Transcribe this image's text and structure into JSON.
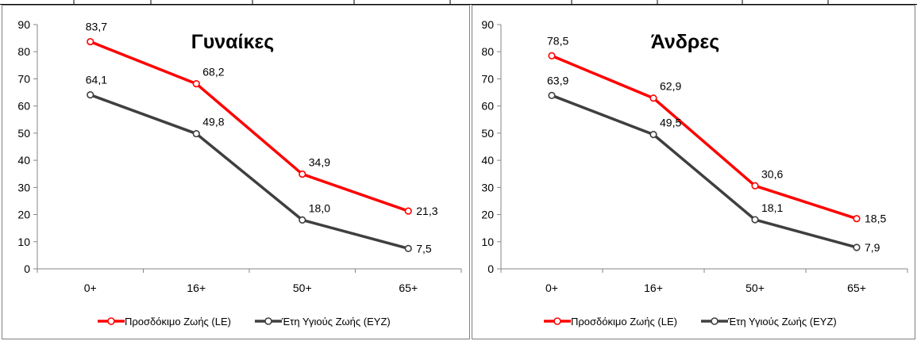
{
  "chart_data": [
    {
      "type": "line",
      "title": "Γυναίκες",
      "categories": [
        "0+",
        "16+",
        "50+",
        "65+"
      ],
      "ylim": [
        0,
        90
      ],
      "yticks": [
        "0",
        "10",
        "20",
        "30",
        "40",
        "50",
        "60",
        "70",
        "80",
        "90"
      ],
      "grid": false,
      "legend": "bottom",
      "series": [
        {
          "name": "Προσδόκιμο Ζωής  (LE)",
          "color": "#ff0000",
          "values": [
            83.7,
            68.2,
            34.9,
            21.3
          ],
          "labels": [
            "83,7",
            "68,2",
            "34,9",
            "21,3"
          ]
        },
        {
          "name": "Έτη Υγιούς Ζωής (ΕΥΖ)",
          "color": "#3f3f3f",
          "values": [
            64.1,
            49.8,
            18.0,
            7.5
          ],
          "labels": [
            "64,1",
            "49,8",
            "18,0",
            "7,5"
          ]
        }
      ]
    },
    {
      "type": "line",
      "title": "Άνδρες",
      "categories": [
        "0+",
        "16+",
        "50+",
        "65+"
      ],
      "ylim": [
        0,
        90
      ],
      "yticks": [
        "0",
        "10",
        "20",
        "30",
        "40",
        "50",
        "60",
        "70",
        "80",
        "90"
      ],
      "grid": false,
      "legend": "bottom",
      "series": [
        {
          "name": "Προσδόκιμο Ζωής  (LE)",
          "color": "#ff0000",
          "values": [
            78.5,
            62.9,
            30.6,
            18.5
          ],
          "labels": [
            "78,5",
            "62,9",
            "30,6",
            "18,5"
          ]
        },
        {
          "name": "Έτη Υγιούς Ζωής (ΕΥΖ)",
          "color": "#3f3f3f",
          "values": [
            63.9,
            49.5,
            18.1,
            7.9
          ],
          "labels": [
            "63,9",
            "49,5",
            "18,1",
            "7,9"
          ]
        }
      ]
    }
  ]
}
